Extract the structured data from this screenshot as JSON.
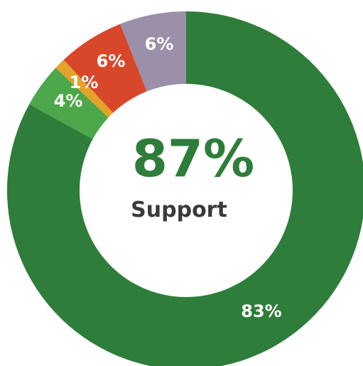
{
  "chart_data": {
    "type": "pie",
    "title": "",
    "center_value": "87%",
    "center_caption": "Support",
    "slices": [
      {
        "label": "83%",
        "value": 83,
        "color": "#2e7d3a"
      },
      {
        "label": "4%",
        "value": 4,
        "color": "#4ca64a"
      },
      {
        "label": "1%",
        "value": 1,
        "color": "#e3a22a"
      },
      {
        "label": "6%",
        "value": 6,
        "color": "#d9472b"
      },
      {
        "label": "6%",
        "value": 6,
        "color": "#9b8fa9"
      }
    ],
    "colors": {
      "center_value": "#2e7d3a",
      "center_caption": "#3a3a3a",
      "hole": "#ffffff"
    }
  }
}
